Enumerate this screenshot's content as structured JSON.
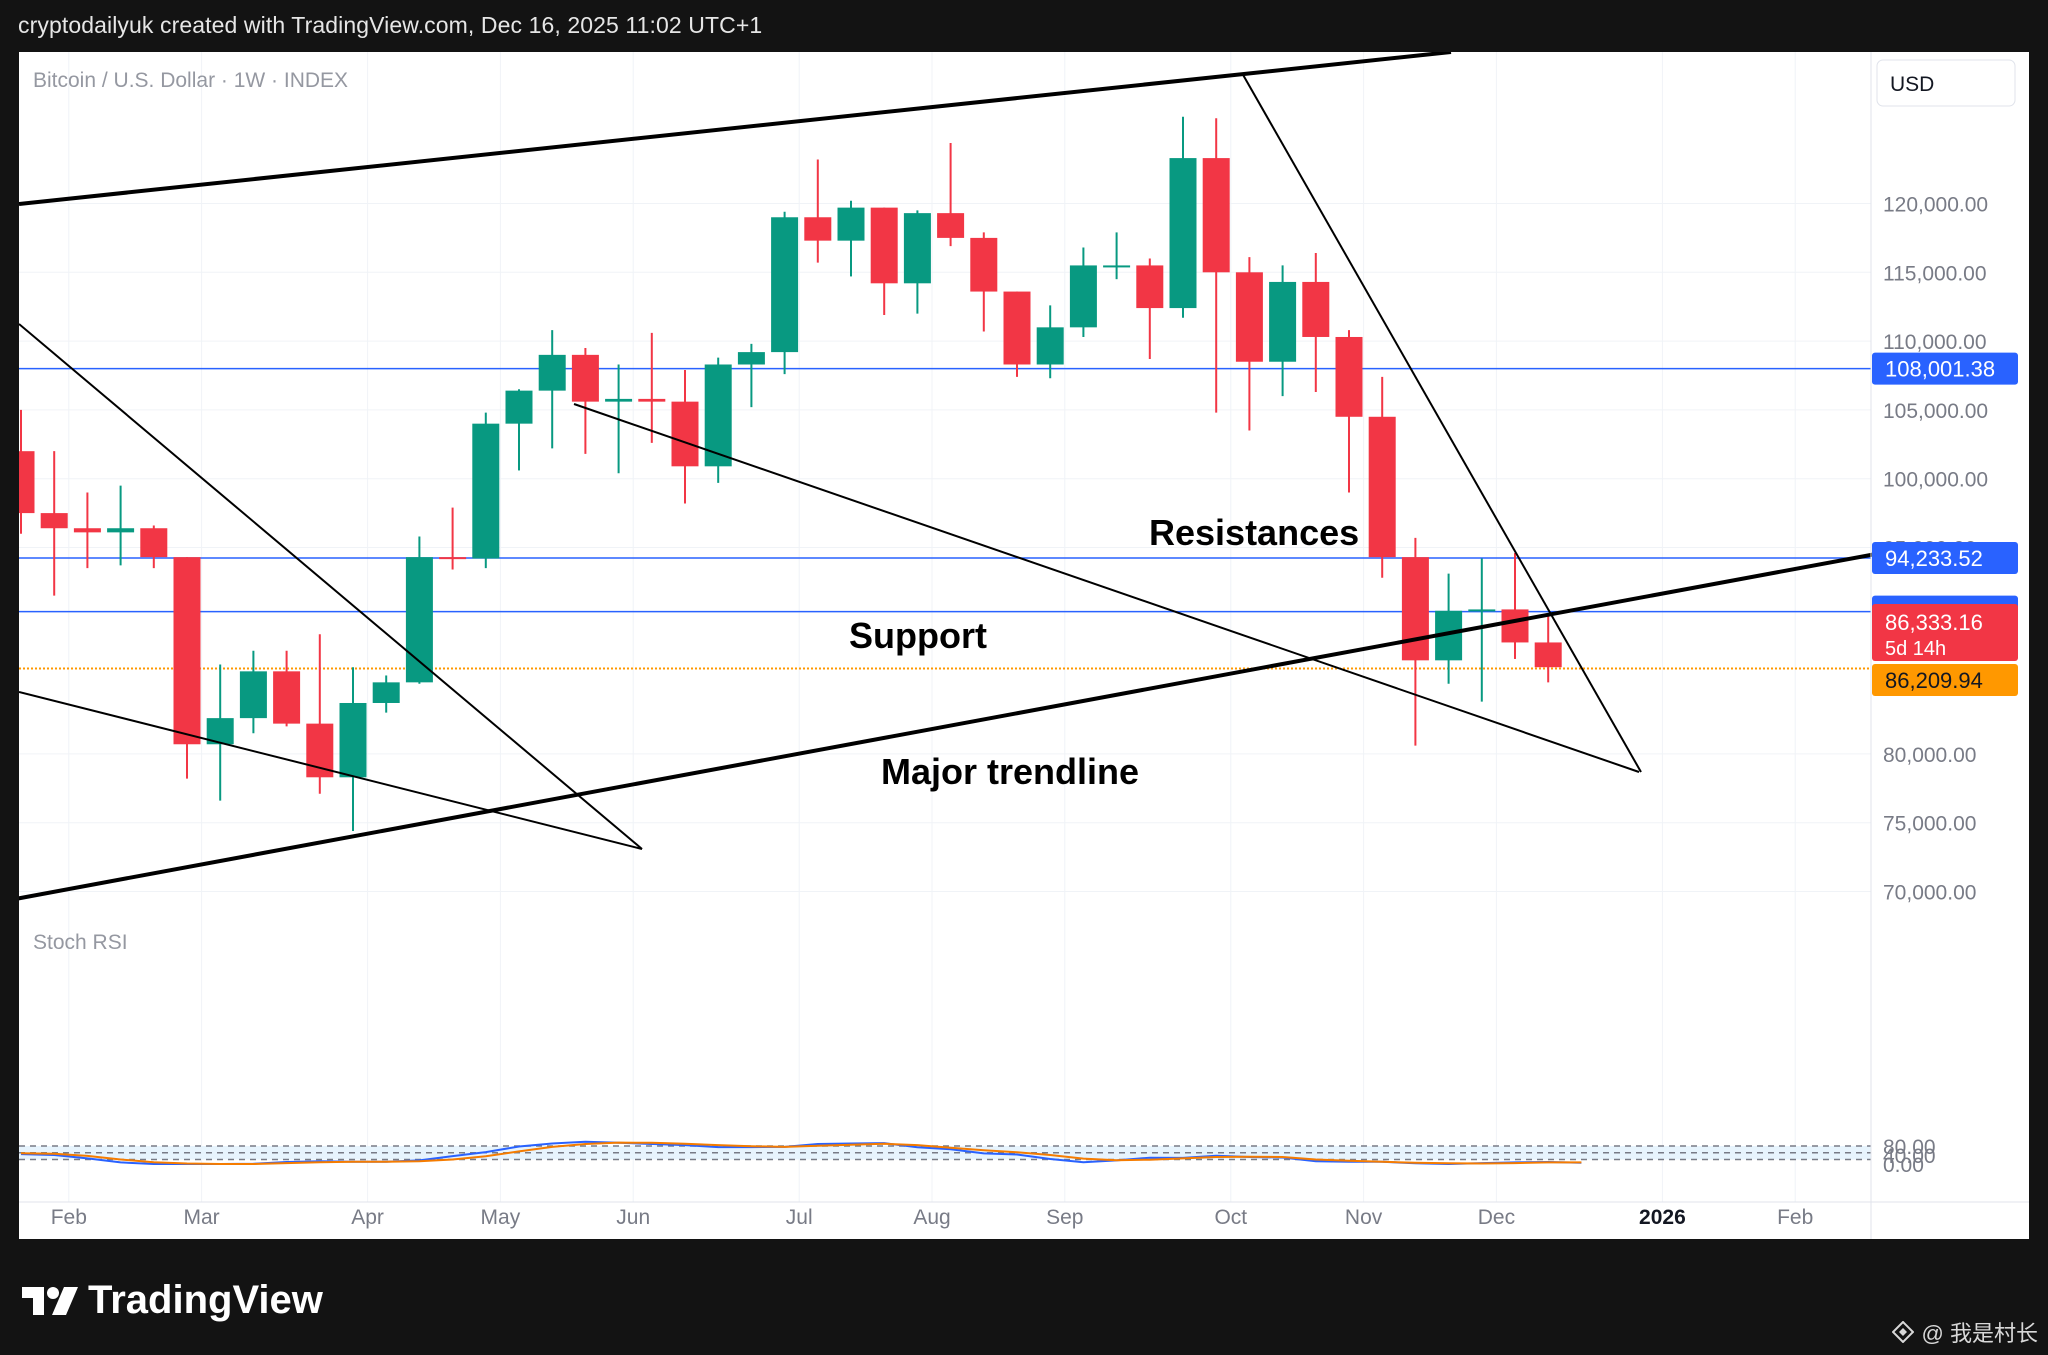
{
  "header": {
    "credit": "cryptodailyuk created with TradingView.com, Dec 16, 2025 11:02 UTC+1"
  },
  "footer": {
    "brand": "TradingView",
    "watermark": "@ 我是村长"
  },
  "chart_data": [
    {
      "type": "candlestick",
      "title": "Bitcoin / U.S. Dollar · 1W · INDEX",
      "currency_label": "USD",
      "ylim": [
        65000,
        128000
      ],
      "y_ticks": [
        120000,
        115000,
        110000,
        105000,
        100000,
        95000,
        80000,
        75000,
        70000
      ],
      "y_tick_labels": [
        "120,000.00",
        "115,000.00",
        "110,000.00",
        "105,000.00",
        "100,000.00",
        "95,000.00",
        "80,000.00",
        "75,000.00",
        "70,000.00"
      ],
      "x_labels": [
        {
          "label": "Feb",
          "week": 1.5,
          "bold": false
        },
        {
          "label": "Mar",
          "week": 5.5,
          "bold": false
        },
        {
          "label": "Apr",
          "week": 10.5,
          "bold": false
        },
        {
          "label": "May",
          "week": 14.5,
          "bold": false
        },
        {
          "label": "Jun",
          "week": 18.5,
          "bold": false
        },
        {
          "label": "Jul",
          "week": 23.5,
          "bold": false
        },
        {
          "label": "Aug",
          "week": 27.5,
          "bold": false
        },
        {
          "label": "Sep",
          "week": 31.5,
          "bold": false
        },
        {
          "label": "Oct",
          "week": 36.5,
          "bold": false
        },
        {
          "label": "Nov",
          "week": 40.5,
          "bold": false
        },
        {
          "label": "Dec",
          "week": 44.5,
          "bold": false
        },
        {
          "label": "2026",
          "week": 49.5,
          "bold": true
        },
        {
          "label": "Feb",
          "week": 53.5,
          "bold": false
        }
      ],
      "candles": [
        {
          "o": 102000,
          "h": 105000,
          "l": 96000,
          "c": 97500
        },
        {
          "o": 97500,
          "h": 102000,
          "l": 91500,
          "c": 96400
        },
        {
          "o": 96400,
          "h": 99000,
          "l": 93500,
          "c": 96100
        },
        {
          "o": 96100,
          "h": 99500,
          "l": 93700,
          "c": 96400
        },
        {
          "o": 96400,
          "h": 96600,
          "l": 93500,
          "c": 94300
        },
        {
          "o": 94300,
          "h": 94300,
          "l": 78200,
          "c": 80700
        },
        {
          "o": 80700,
          "h": 86500,
          "l": 76600,
          "c": 82600
        },
        {
          "o": 82600,
          "h": 87500,
          "l": 81500,
          "c": 86000
        },
        {
          "o": 86000,
          "h": 87500,
          "l": 82000,
          "c": 82200
        },
        {
          "o": 82200,
          "h": 88700,
          "l": 77100,
          "c": 78300
        },
        {
          "o": 78300,
          "h": 86300,
          "l": 74400,
          "c": 83700
        },
        {
          "o": 83700,
          "h": 85700,
          "l": 83000,
          "c": 85200
        },
        {
          "o": 85200,
          "h": 95800,
          "l": 85100,
          "c": 94300
        },
        {
          "o": 94300,
          "h": 97900,
          "l": 93400,
          "c": 94200
        },
        {
          "o": 94200,
          "h": 104800,
          "l": 93500,
          "c": 104000
        },
        {
          "o": 104000,
          "h": 106500,
          "l": 100600,
          "c": 106400
        },
        {
          "o": 106400,
          "h": 110800,
          "l": 102200,
          "c": 109000
        },
        {
          "o": 109000,
          "h": 109500,
          "l": 101800,
          "c": 105600
        },
        {
          "o": 105600,
          "h": 108300,
          "l": 100400,
          "c": 105800
        },
        {
          "o": 105800,
          "h": 110600,
          "l": 102600,
          "c": 105600
        },
        {
          "o": 105600,
          "h": 107900,
          "l": 98200,
          "c": 100900
        },
        {
          "o": 100900,
          "h": 108800,
          "l": 99700,
          "c": 108300
        },
        {
          "o": 108300,
          "h": 109800,
          "l": 105200,
          "c": 109200
        },
        {
          "o": 109200,
          "h": 119400,
          "l": 107600,
          "c": 119000
        },
        {
          "o": 119000,
          "h": 123200,
          "l": 115700,
          "c": 117300
        },
        {
          "o": 117300,
          "h": 120200,
          "l": 114700,
          "c": 119700
        },
        {
          "o": 119700,
          "h": 119700,
          "l": 111900,
          "c": 114200
        },
        {
          "o": 114200,
          "h": 119500,
          "l": 112000,
          "c": 119300
        },
        {
          "o": 119300,
          "h": 124400,
          "l": 116900,
          "c": 117500
        },
        {
          "o": 117500,
          "h": 117900,
          "l": 110700,
          "c": 113600
        },
        {
          "o": 113600,
          "h": 113600,
          "l": 107400,
          "c": 108300
        },
        {
          "o": 108300,
          "h": 112600,
          "l": 107300,
          "c": 111000
        },
        {
          "o": 111000,
          "h": 116800,
          "l": 110300,
          "c": 115500
        },
        {
          "o": 115500,
          "h": 117900,
          "l": 114500,
          "c": 115500
        },
        {
          "o": 115500,
          "h": 116000,
          "l": 108700,
          "c": 112400
        },
        {
          "o": 112400,
          "h": 126300,
          "l": 111700,
          "c": 123300
        },
        {
          "o": 123300,
          "h": 126200,
          "l": 104800,
          "c": 115000
        },
        {
          "o": 115000,
          "h": 116100,
          "l": 103500,
          "c": 108500
        },
        {
          "o": 108500,
          "h": 115500,
          "l": 106000,
          "c": 114300
        },
        {
          "o": 114300,
          "h": 116400,
          "l": 106300,
          "c": 110300
        },
        {
          "o": 110300,
          "h": 110800,
          "l": 99000,
          "c": 104500
        },
        {
          "o": 104500,
          "h": 107400,
          "l": 92800,
          "c": 94300
        },
        {
          "o": 94300,
          "h": 95700,
          "l": 80600,
          "c": 86800
        },
        {
          "o": 86800,
          "h": 93100,
          "l": 85100,
          "c": 90400
        },
        {
          "o": 90400,
          "h": 94200,
          "l": 83800,
          "c": 90500
        },
        {
          "o": 90500,
          "h": 94600,
          "l": 86900,
          "c": 88100
        },
        {
          "o": 88100,
          "h": 90000,
          "l": 85200,
          "c": 86300
        }
      ],
      "horizontal_lines": [
        {
          "value": 108001.38,
          "label": "108,001.38",
          "color": "#2962ff"
        },
        {
          "value": 94233.52,
          "label": "94,233.52",
          "color": "#2962ff"
        },
        {
          "value": 90337.82,
          "label": "90,337.82",
          "color": "#2962ff"
        },
        {
          "value": 86209.94,
          "label": "86,209.94",
          "color": "#ff9800",
          "dotted": true
        }
      ],
      "price_tags": [
        {
          "label": "86,333.16",
          "sublabel": "5d 14h",
          "color": "#f23645"
        },
        {
          "label": "86,209.94",
          "color": "#ff9800"
        }
      ],
      "annotations": [
        {
          "text": "Resistances"
        },
        {
          "text": "Support"
        },
        {
          "text": "Major trendline"
        }
      ],
      "colors": {
        "up": "#089981",
        "down": "#f23645"
      }
    },
    {
      "type": "line",
      "title": "Stoch RSI",
      "ylim": [
        0,
        100
      ],
      "y_ticks": [
        80,
        40,
        0
      ],
      "y_tick_labels": [
        "80.00",
        "40.00",
        "0.00"
      ],
      "band": [
        20,
        80
      ],
      "dashed_levels": [
        80,
        50,
        20
      ],
      "series": [
        {
          "color": "#2962ff",
          "values": [
            44,
            40,
            25,
            7,
            0,
            0,
            0,
            1,
            9,
            12,
            10,
            10,
            16,
            35,
            53,
            78,
            91,
            99,
            94,
            89,
            84,
            75,
            75,
            76,
            89,
            91,
            93,
            74,
            66,
            47,
            42,
            22,
            8,
            16,
            28,
            27,
            37,
            31,
            29,
            12,
            10,
            10,
            3,
            0,
            4,
            7,
            9,
            6
          ]
        },
        {
          "color": "#f57c00",
          "values": [
            48,
            46,
            36,
            20,
            8,
            2,
            0,
            0,
            4,
            8,
            10,
            10,
            12,
            20,
            34,
            56,
            76,
            89,
            95,
            94,
            90,
            84,
            79,
            76,
            81,
            86,
            90,
            84,
            72,
            61,
            52,
            40,
            24,
            17,
            19,
            25,
            31,
            32,
            31,
            20,
            14,
            10,
            6,
            3,
            2,
            4,
            7,
            7
          ]
        }
      ]
    }
  ]
}
